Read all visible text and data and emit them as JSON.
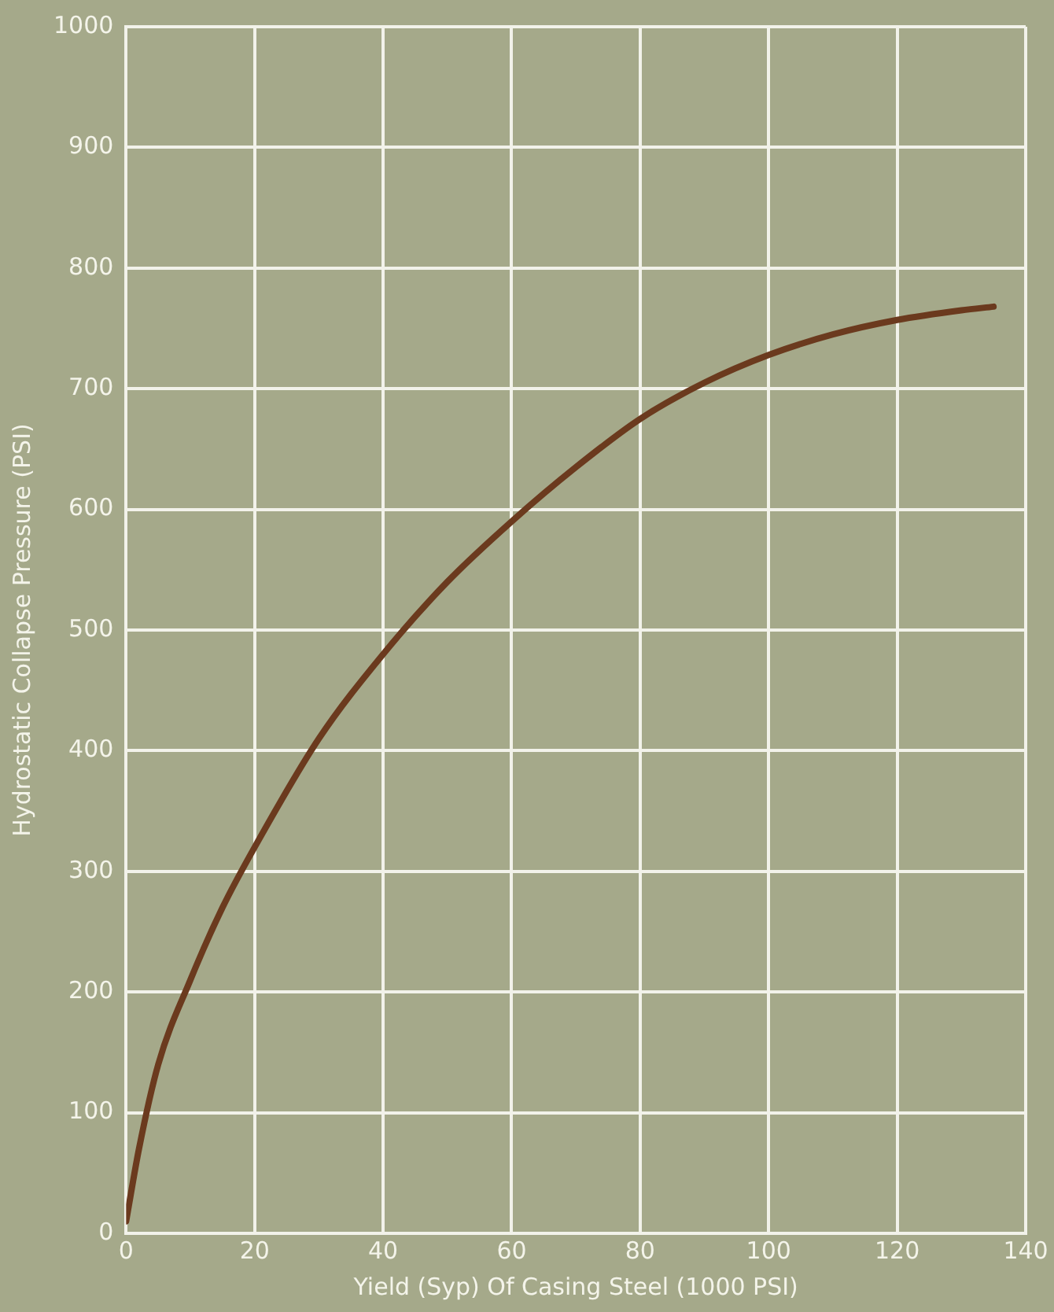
{
  "chart_data": {
    "type": "line",
    "xlabel": "Yield (Syp) Of Casing Steel (1000 PSI)",
    "ylabel": "Hydrostatic Collapse Pressure (PSI)",
    "series": [
      {
        "color": "#6b3a1e",
        "x": [
          0,
          2,
          5,
          10,
          15,
          20,
          30,
          40,
          50,
          60,
          70,
          80,
          90,
          100,
          110,
          120,
          130,
          135
        ],
        "values": [
          10,
          70,
          140,
          210,
          270,
          320,
          410,
          480,
          540,
          590,
          635,
          675,
          705,
          728,
          745,
          757,
          765,
          768
        ]
      }
    ],
    "xlim": [
      0,
      140
    ],
    "xticks": [
      0,
      20,
      40,
      60,
      80,
      100,
      120,
      140
    ],
    "ylim": [
      0,
      1000
    ],
    "yticks": [
      0,
      100,
      200,
      300,
      400,
      500,
      600,
      700,
      800,
      900,
      1000
    ],
    "grid": true,
    "legend": false,
    "marker": "none",
    "line_style": "solid"
  }
}
